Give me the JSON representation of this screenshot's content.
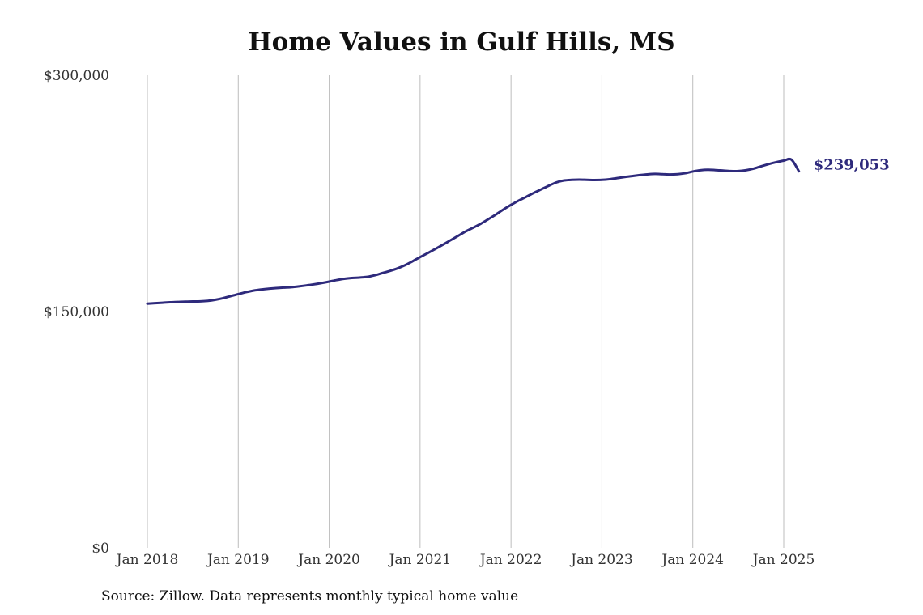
{
  "chart_data": {
    "type": "line",
    "title": "Home Values in Gulf Hills, MS",
    "xlabel": "",
    "ylabel": "",
    "source": "Source: Zillow. Data represents monthly typical home value",
    "ylim": [
      0,
      300000
    ],
    "y_ticks": [
      {
        "value": 0,
        "label": "$0"
      },
      {
        "value": 150000,
        "label": "$150,000"
      },
      {
        "value": 300000,
        "label": "$300,000"
      }
    ],
    "x_ticks": [
      {
        "date": "2018-01",
        "label": "Jan 2018"
      },
      {
        "date": "2019-01",
        "label": "Jan 2019"
      },
      {
        "date": "2020-01",
        "label": "Jan 2020"
      },
      {
        "date": "2021-01",
        "label": "Jan 2021"
      },
      {
        "date": "2022-01",
        "label": "Jan 2022"
      },
      {
        "date": "2023-01",
        "label": "Jan 2023"
      },
      {
        "date": "2024-01",
        "label": "Jan 2024"
      },
      {
        "date": "2025-01",
        "label": "Jan 2025"
      }
    ],
    "grid": {
      "vertical": true,
      "horizontal": false
    },
    "legend": "none",
    "line_color": "#2e2a7c",
    "end_label": "$239,053",
    "series": [
      {
        "x": [
          "2018-01",
          "2018-02",
          "2018-03",
          "2018-04",
          "2018-05",
          "2018-06",
          "2018-07",
          "2018-08",
          "2018-09",
          "2018-10",
          "2018-11",
          "2018-12",
          "2019-01",
          "2019-02",
          "2019-03",
          "2019-04",
          "2019-05",
          "2019-06",
          "2019-07",
          "2019-08",
          "2019-09",
          "2019-10",
          "2019-11",
          "2019-12",
          "2020-01",
          "2020-02",
          "2020-03",
          "2020-04",
          "2020-05",
          "2020-06",
          "2020-07",
          "2020-08",
          "2020-09",
          "2020-10",
          "2020-11",
          "2020-12",
          "2021-01",
          "2021-02",
          "2021-03",
          "2021-04",
          "2021-05",
          "2021-06",
          "2021-07",
          "2021-08",
          "2021-09",
          "2021-10",
          "2021-11",
          "2021-12",
          "2022-01",
          "2022-02",
          "2022-03",
          "2022-04",
          "2022-05",
          "2022-06",
          "2022-07",
          "2022-08",
          "2022-09",
          "2022-10",
          "2022-11",
          "2022-12",
          "2023-01",
          "2023-02",
          "2023-03",
          "2023-04",
          "2023-05",
          "2023-06",
          "2023-07",
          "2023-08",
          "2023-09",
          "2023-10",
          "2023-11",
          "2023-12",
          "2024-01",
          "2024-02",
          "2024-03",
          "2024-04",
          "2024-05",
          "2024-06",
          "2024-07",
          "2024-08",
          "2024-09",
          "2024-10",
          "2024-11",
          "2024-12",
          "2025-01",
          "2025-02",
          "2025-03"
        ],
        "y": [
          155000,
          155300,
          155600,
          155900,
          156100,
          156300,
          156400,
          156500,
          156800,
          157500,
          158500,
          159800,
          161100,
          162300,
          163300,
          164000,
          164500,
          164900,
          165200,
          165500,
          166000,
          166600,
          167300,
          168100,
          169000,
          170000,
          170800,
          171300,
          171600,
          172000,
          173000,
          174400,
          175800,
          177400,
          179400,
          181900,
          184600,
          187100,
          189700,
          192400,
          195200,
          198000,
          200800,
          203200,
          205700,
          208600,
          211600,
          214800,
          217700,
          220400,
          222800,
          225300,
          227600,
          229900,
          232000,
          233200,
          233600,
          233700,
          233600,
          233500,
          233600,
          234000,
          234700,
          235400,
          236000,
          236600,
          237100,
          237400,
          237200,
          237000,
          237200,
          237800,
          238900,
          239700,
          240000,
          239800,
          239500,
          239200,
          239200,
          239700,
          240700,
          242200,
          243600,
          244800,
          245800,
          246500,
          239053
        ]
      }
    ]
  }
}
